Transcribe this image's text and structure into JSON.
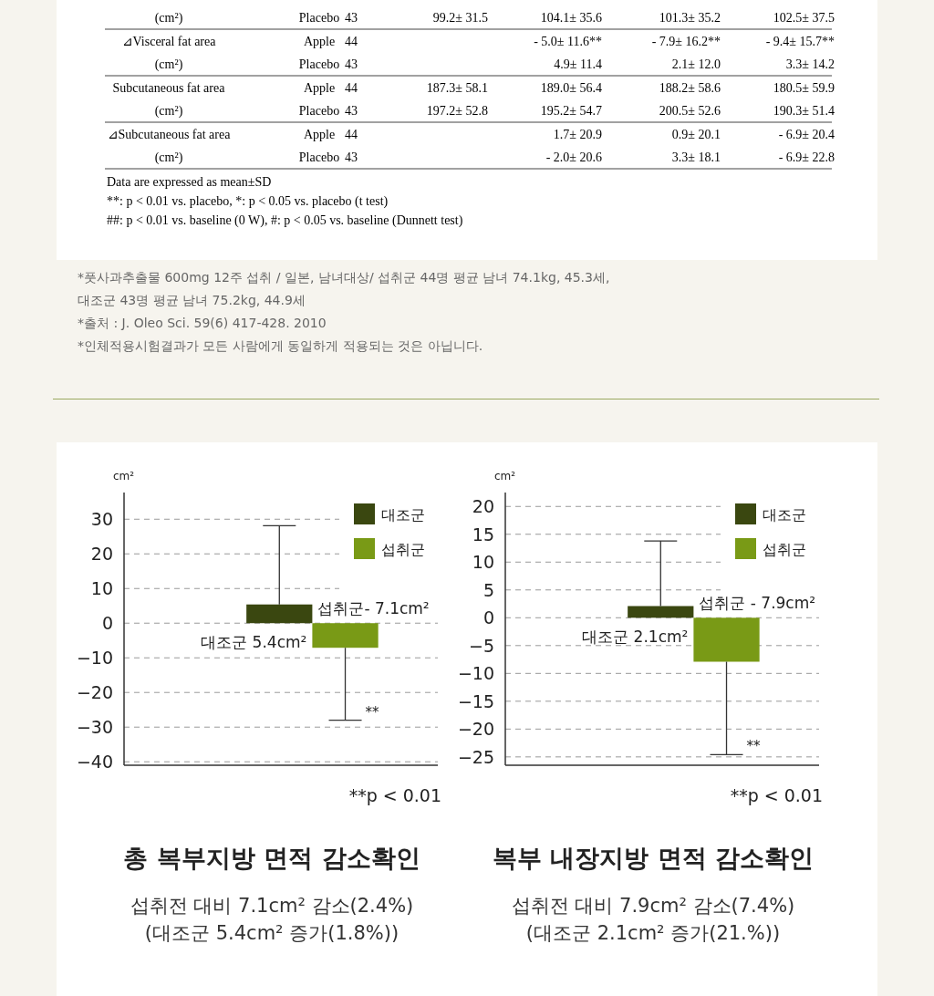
{
  "chart_data": [
    {
      "type": "other",
      "cells": [
        [
          "(cm²)",
          "Placebo",
          "43",
          "99.2± 31.5",
          "104.1± 35.6",
          "101.3± 35.2",
          "102.5± 37.5"
        ],
        [
          "⊿Visceral fat area",
          "Apple",
          "44",
          null,
          "- 5.0± 11.6**",
          "- 7.9± 16.2**",
          "- 9.4± 15.7**"
        ],
        [
          "(cm²)",
          "Placebo",
          "43",
          null,
          "4.9± 11.4",
          "2.1± 12.0",
          "3.3± 14.2"
        ],
        [
          "Subcutaneous fat area",
          "Apple",
          "44",
          "187.3± 58.1",
          "189.0± 56.4",
          "188.2± 58.6",
          "180.5± 59.9"
        ],
        [
          "(cm²)",
          "Placebo",
          "43",
          "197.2± 52.8",
          "195.2± 54.7",
          "200.5± 52.6",
          "190.3± 51.4"
        ],
        [
          "⊿Subcutaneous fat area",
          "Apple",
          "44",
          null,
          "1.7± 20.9",
          "0.9± 20.1",
          "- 6.9± 20.4"
        ],
        [
          "(cm²)",
          "Placebo",
          "43",
          null,
          "- 2.0± 20.6",
          "3.3± 18.1",
          "- 6.9± 22.8"
        ]
      ],
      "annotations": [
        "Data are expressed as mean±SD",
        "**: p < 0.01 vs. placebo, *: p < 0.05 vs. placebo (t test)",
        "##: p < 0.01 vs. baseline (0 W), #: p < 0.05 vs. baseline (Dunnett test)"
      ]
    },
    {
      "type": "other",
      "annotations": [
        "*풋사과추출물 600mg 12주 섭취 / 일본, 남녀대상/ 섭취군 44명 평균 남녀 74.1kg, 45.3세,",
        "대조군 43명 평균 남녀 75.2kg, 44.9세",
        "*출처 : J. Oleo Sci. 59(6) 417-428. 2010",
        "*인체적용시험결과가 모든 사람에게 동일하게 적용되는 것은 아닙니다."
      ]
    },
    {
      "type": "bar",
      "title": "총 복부지방 면적 감소확인",
      "subtitle": "섭취전 대비 7.1cm² 감소(2.4%)\n(대조군 5.4cm² 증가(1.8%))",
      "ylabel": "cm²",
      "categories": [
        null
      ],
      "series": [
        {
          "name": "대조군",
          "color": "#3a4710",
          "values": [
            5.4
          ],
          "errors": [
            [
              5.4,
              28.1
            ]
          ],
          "value_labels": [
            "대조군 5.4cm²"
          ]
        },
        {
          "name": "섭취군",
          "color": "#799a16",
          "values": [
            -7.1
          ],
          "errors": [
            [
              -28.0,
              -7.1
            ]
          ],
          "value_labels": [
            "섭취군- 7.1cm²"
          ]
        }
      ],
      "ylim": [
        -41,
        37.7
      ],
      "yticks": [
        30,
        20,
        10,
        0,
        -10,
        -20,
        -30,
        -40
      ],
      "grid": "y",
      "legend": "top right",
      "annotations": [
        "**",
        "**p < 0.01"
      ]
    },
    {
      "type": "bar",
      "title": "복부 내장지방 면적 감소확인",
      "subtitle": "섭취전 대비 7.9cm² 감소(7.4%)\n(대조군 2.1cm² 증가(21.%))",
      "ylabel": "cm²",
      "categories": [
        null
      ],
      "series": [
        {
          "name": "대조군",
          "color": "#3a4710",
          "values": [
            2.1
          ],
          "errors": [
            [
              2.1,
              13.8
            ]
          ],
          "value_labels": [
            "대조군 2.1cm²"
          ]
        },
        {
          "name": "섭취군",
          "color": "#799a16",
          "values": [
            -7.9
          ],
          "errors": [
            [
              -24.6,
              -7.9
            ]
          ],
          "value_labels": [
            "섭취군 - 7.9cm²"
          ]
        }
      ],
      "ylim": [
        -26.5,
        22.5
      ],
      "yticks": [
        20,
        15,
        10,
        5,
        0,
        -5,
        -10,
        -15,
        -20,
        -25
      ],
      "grid": "y",
      "legend": "top right",
      "annotations": [
        "**",
        "**p < 0.01"
      ]
    }
  ]
}
